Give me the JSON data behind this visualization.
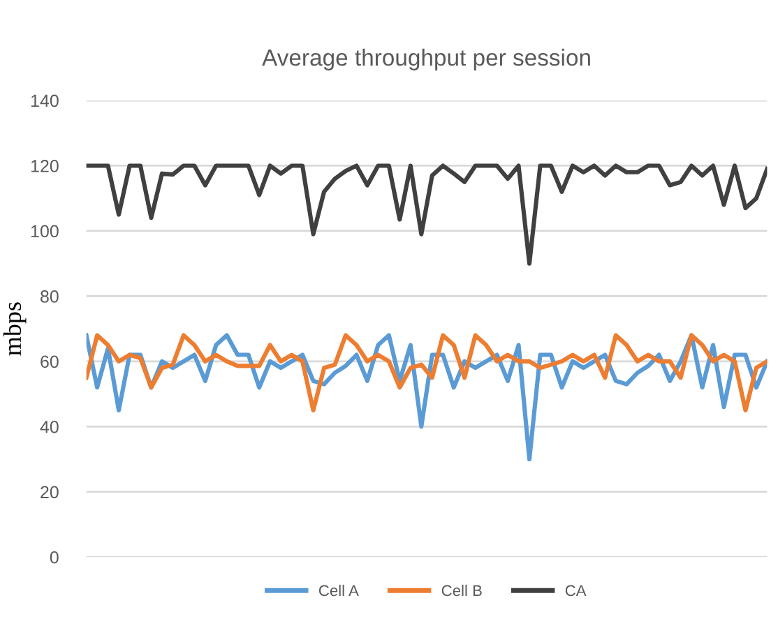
{
  "chart_data": {
    "type": "line",
    "title": "Average throughput per session",
    "ylabel": "mbps",
    "categories": [
      null,
      null,
      null,
      null,
      null,
      null,
      null,
      null,
      null,
      null,
      null,
      null,
      null,
      null,
      null,
      null,
      null,
      null,
      null,
      null,
      null,
      null,
      null,
      null,
      null,
      null,
      null,
      null,
      null,
      null,
      null,
      null,
      null,
      null,
      null,
      null,
      null,
      null,
      null,
      null,
      null,
      null,
      null,
      null,
      null,
      null,
      null,
      null,
      null,
      null,
      null,
      null,
      null,
      null,
      null,
      null,
      null,
      null,
      null,
      null,
      null,
      null,
      null,
      null
    ],
    "series": [
      {
        "name": "Cell A",
        "color": "#5b9bd5",
        "values": [
          68,
          52,
          64,
          45,
          62,
          62,
          52,
          60,
          58,
          60,
          62,
          54,
          65,
          68,
          62,
          62,
          52,
          60,
          58,
          60,
          62,
          54,
          53,
          56.5,
          58.6,
          62,
          54,
          65,
          68,
          54,
          65,
          40,
          62,
          62,
          52,
          60,
          58,
          60,
          62,
          54,
          65,
          30,
          62,
          62,
          52,
          60,
          58,
          60,
          62,
          54,
          53,
          56.5,
          58.6,
          62,
          54,
          60,
          68,
          52,
          65,
          46,
          62,
          62,
          52,
          60
        ]
      },
      {
        "name": "Cell B",
        "color": "#ed7d31",
        "values": [
          55,
          68,
          65,
          60,
          62,
          61,
          52,
          58,
          59,
          68,
          65,
          60,
          62,
          60,
          58.6,
          58.6,
          58.6,
          65,
          60,
          62,
          60,
          45,
          58,
          59,
          68,
          65,
          60,
          62,
          60,
          52,
          58,
          59,
          55,
          68,
          65,
          55,
          68,
          65,
          60,
          62,
          60,
          60,
          58,
          59,
          60,
          62,
          60,
          62,
          55,
          68,
          65,
          60,
          62,
          60,
          60,
          55,
          68,
          65,
          60,
          62,
          60,
          45,
          58,
          60
        ]
      },
      {
        "name": "CA",
        "color": "#404040",
        "values": [
          120,
          120,
          120,
          105,
          120,
          120,
          104,
          117.6,
          117.3,
          120,
          120,
          114,
          120,
          120,
          120,
          120,
          111,
          120,
          117.6,
          120,
          120,
          99,
          112,
          116,
          118.4,
          120,
          114,
          120,
          120,
          103.5,
          120,
          99,
          117,
          120,
          117.6,
          115,
          120,
          120,
          120,
          116,
          120,
          90,
          120,
          120,
          112,
          120,
          118,
          120,
          117,
          120,
          118,
          118,
          120,
          120,
          114,
          115,
          120,
          117,
          120,
          108,
          120,
          107,
          110,
          119
        ]
      }
    ],
    "ylim": [
      0,
      140
    ],
    "yticks": [
      0,
      20,
      40,
      60,
      80,
      100,
      120,
      140
    ],
    "grid": "y",
    "legend": "bottom",
    "tick_labels": "y",
    "marker": "none",
    "line_style": "solid"
  }
}
